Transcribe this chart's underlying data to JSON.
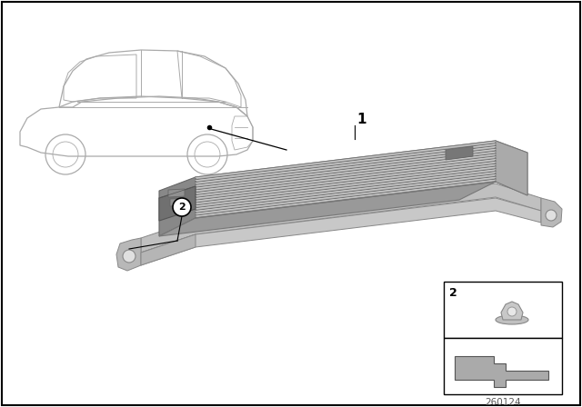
{
  "background_color": "#ffffff",
  "border_color": "#000000",
  "part_number": "260124",
  "fig_width": 6.4,
  "fig_height": 4.48,
  "dpi": 100,
  "car_color": "#cccccc",
  "unit_top_color": "#aaaaaa",
  "unit_side_color": "#999999",
  "unit_front_color": "#888888",
  "tray_color": "#b8b8b8",
  "tray_bottom_color": "#c8c8c8",
  "connector_color": "#808080",
  "mount_color": "#b0b0b0",
  "fin_dark": "#888888",
  "fin_light": "#d0d0d0"
}
